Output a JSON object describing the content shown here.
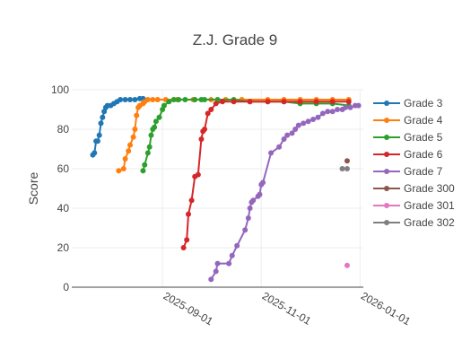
{
  "chart_data": {
    "type": "line",
    "title": "Z.J. Grade 9",
    "xlabel": "",
    "ylabel": "Score",
    "x_axis_type": "date",
    "xlim": [
      "2025-07-07",
      "2026-01-03"
    ],
    "ylim": [
      0,
      100
    ],
    "x_ticks": [
      "2025-09-01",
      "2025-11-01",
      "2026-01-01"
    ],
    "y_ticks": [
      0,
      20,
      40,
      60,
      80,
      100
    ],
    "grid": true,
    "legend_position": "right",
    "series": [
      {
        "name": "Grade 3",
        "color": "#1f77b4",
        "points": [
          [
            "2025-07-20",
            67
          ],
          [
            "2025-07-21",
            68
          ],
          [
            "2025-07-22",
            74
          ],
          [
            "2025-07-23",
            74
          ],
          [
            "2025-07-24",
            77
          ],
          [
            "2025-07-25",
            83
          ],
          [
            "2025-07-26",
            86
          ],
          [
            "2025-07-27",
            89
          ],
          [
            "2025-07-28",
            91
          ],
          [
            "2025-07-29",
            92
          ],
          [
            "2025-07-31",
            92
          ],
          [
            "2025-08-02",
            93
          ],
          [
            "2025-08-04",
            94
          ],
          [
            "2025-08-06",
            95
          ],
          [
            "2025-08-09",
            95
          ],
          [
            "2025-08-12",
            95
          ],
          [
            "2025-08-15",
            95
          ],
          [
            "2025-08-18",
            95.5
          ],
          [
            "2025-08-20",
            95.5
          ]
        ]
      },
      {
        "name": "Grade 4",
        "color": "#ff7f0e",
        "points": [
          [
            "2025-08-05",
            59
          ],
          [
            "2025-08-08",
            60
          ],
          [
            "2025-08-09",
            65
          ],
          [
            "2025-08-11",
            69
          ],
          [
            "2025-08-12",
            72
          ],
          [
            "2025-08-14",
            76
          ],
          [
            "2025-08-15",
            80
          ],
          [
            "2025-08-16",
            87
          ],
          [
            "2025-08-17",
            91
          ],
          [
            "2025-08-18",
            92
          ],
          [
            "2025-08-20",
            93
          ],
          [
            "2025-08-21",
            94
          ],
          [
            "2025-08-23",
            95
          ],
          [
            "2025-08-26",
            95
          ],
          [
            "2025-08-29",
            95
          ],
          [
            "2025-09-03",
            95
          ],
          [
            "2025-09-10",
            95
          ],
          [
            "2025-09-20",
            95
          ],
          [
            "2025-10-01",
            95
          ],
          [
            "2025-10-10",
            95
          ],
          [
            "2025-10-20",
            95
          ],
          [
            "2025-11-05",
            95
          ],
          [
            "2025-11-15",
            95
          ],
          [
            "2025-11-25",
            95
          ],
          [
            "2025-12-05",
            95
          ],
          [
            "2025-12-15",
            95
          ],
          [
            "2025-12-25",
            95
          ]
        ]
      },
      {
        "name": "Grade 5",
        "color": "#2ca02c",
        "points": [
          [
            "2025-08-20",
            59
          ],
          [
            "2025-08-21",
            62
          ],
          [
            "2025-08-23",
            68
          ],
          [
            "2025-08-24",
            71
          ],
          [
            "2025-08-25",
            77
          ],
          [
            "2025-08-26",
            80
          ],
          [
            "2025-08-27",
            81
          ],
          [
            "2025-08-28",
            84
          ],
          [
            "2025-08-30",
            86
          ],
          [
            "2025-09-01",
            90
          ],
          [
            "2025-09-02",
            92
          ],
          [
            "2025-09-05",
            94
          ],
          [
            "2025-09-08",
            95
          ],
          [
            "2025-09-11",
            95
          ],
          [
            "2025-09-15",
            95
          ],
          [
            "2025-09-21",
            95
          ],
          [
            "2025-09-25",
            95
          ],
          [
            "2025-09-27",
            95
          ],
          [
            "2025-10-05",
            95
          ],
          [
            "2025-10-15",
            95
          ],
          [
            "2025-10-25",
            94
          ],
          [
            "2025-11-05",
            94
          ],
          [
            "2025-11-15",
            94
          ],
          [
            "2025-11-25",
            93
          ],
          [
            "2025-12-05",
            93
          ],
          [
            "2025-12-15",
            93
          ],
          [
            "2025-12-25",
            92
          ]
        ]
      },
      {
        "name": "Grade 6",
        "color": "#d62728",
        "points": [
          [
            "2025-09-14",
            20
          ],
          [
            "2025-09-16",
            24
          ],
          [
            "2025-09-17",
            37
          ],
          [
            "2025-09-19",
            44
          ],
          [
            "2025-09-21",
            56
          ],
          [
            "2025-09-23",
            57
          ],
          [
            "2025-09-25",
            75
          ],
          [
            "2025-09-26",
            79
          ],
          [
            "2025-09-27",
            80
          ],
          [
            "2025-09-29",
            88
          ],
          [
            "2025-10-01",
            90
          ],
          [
            "2025-10-04",
            93
          ],
          [
            "2025-10-08",
            94
          ],
          [
            "2025-10-15",
            94
          ],
          [
            "2025-10-25",
            94
          ],
          [
            "2025-11-05",
            94
          ],
          [
            "2025-11-15",
            94
          ],
          [
            "2025-11-25",
            94
          ],
          [
            "2025-12-05",
            94
          ],
          [
            "2025-12-15",
            94
          ],
          [
            "2025-12-25",
            94
          ]
        ]
      },
      {
        "name": "Grade 7",
        "color": "#9467bd",
        "points": [
          [
            "2025-10-01",
            4
          ],
          [
            "2025-10-04",
            8
          ],
          [
            "2025-10-05",
            12
          ],
          [
            "2025-10-12",
            12
          ],
          [
            "2025-10-14",
            16
          ],
          [
            "2025-10-17",
            21
          ],
          [
            "2025-10-22",
            29
          ],
          [
            "2025-10-24",
            35
          ],
          [
            "2025-10-25",
            40
          ],
          [
            "2025-10-26",
            43
          ],
          [
            "2025-10-27",
            44
          ],
          [
            "2025-10-30",
            46
          ],
          [
            "2025-10-31",
            47
          ],
          [
            "2025-11-01",
            52
          ],
          [
            "2025-11-02",
            53
          ],
          [
            "2025-11-07",
            68
          ],
          [
            "2025-11-12",
            71
          ],
          [
            "2025-11-15",
            75
          ],
          [
            "2025-11-17",
            77
          ],
          [
            "2025-11-20",
            78
          ],
          [
            "2025-11-22",
            80
          ],
          [
            "2025-11-24",
            82
          ],
          [
            "2025-11-27",
            83
          ],
          [
            "2025-11-30",
            84
          ],
          [
            "2025-12-03",
            85
          ],
          [
            "2025-12-06",
            86
          ],
          [
            "2025-12-09",
            88
          ],
          [
            "2025-12-12",
            89
          ],
          [
            "2025-12-15",
            89
          ],
          [
            "2025-12-18",
            90
          ],
          [
            "2025-12-21",
            90
          ],
          [
            "2025-12-23",
            91
          ],
          [
            "2025-12-26",
            91
          ],
          [
            "2025-12-29",
            92
          ],
          [
            "2025-12-31",
            92
          ]
        ]
      },
      {
        "name": "Grade 300",
        "color": "#8c564b",
        "points": [
          [
            "2025-12-24",
            64
          ]
        ]
      },
      {
        "name": "Grade 301",
        "color": "#e377c2",
        "points": [
          [
            "2025-12-24",
            11
          ]
        ]
      },
      {
        "name": "Grade 302",
        "color": "#7f7f7f",
        "points": [
          [
            "2025-12-21",
            60
          ],
          [
            "2025-12-24",
            60
          ]
        ]
      }
    ]
  }
}
